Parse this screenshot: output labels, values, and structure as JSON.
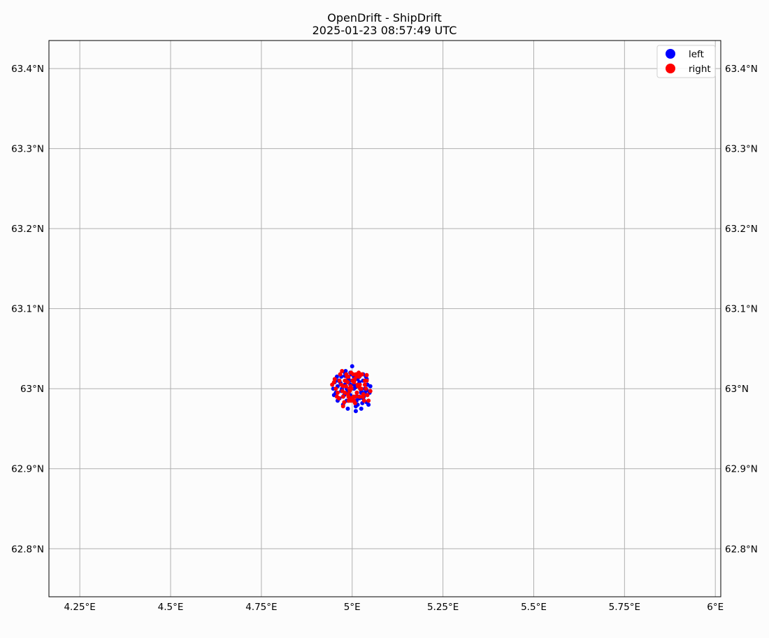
{
  "chart_data": {
    "type": "scatter",
    "title": "OpenDrift - ShipDrift",
    "subtitle": "2025-01-23 08:57:49 UTC",
    "xlabel": "",
    "ylabel": "",
    "xlim": [
      4.165,
      6.015
    ],
    "ylim": [
      62.74,
      63.435
    ],
    "x_ticks": [
      4.25,
      4.5,
      4.75,
      5.0,
      5.25,
      5.5,
      5.75,
      6.0
    ],
    "x_tick_labels": [
      "4.25°E",
      "4.5°E",
      "4.75°E",
      "5°E",
      "5.25°E",
      "5.5°E",
      "5.75°E",
      "6°E"
    ],
    "y_ticks": [
      62.8,
      62.9,
      63.0,
      63.1,
      63.2,
      63.3,
      63.4
    ],
    "y_tick_labels": [
      "62.8°N",
      "62.9°N",
      "63°N",
      "63.1°N",
      "63.2°N",
      "63.3°N",
      "63.4°N"
    ],
    "grid": true,
    "legend_position": "top-right",
    "series": [
      {
        "name": "left",
        "color": "#0000ff",
        "x": [
          4.948,
          4.955,
          4.962,
          4.97,
          4.975,
          4.98,
          4.985,
          4.99,
          4.995,
          5.0,
          5.005,
          5.01,
          5.015,
          5.02,
          5.025,
          5.03,
          5.035,
          5.04,
          5.045,
          5.05,
          4.96,
          4.968,
          4.978,
          4.988,
          4.998,
          5.008,
          5.018,
          5.028,
          5.038,
          5.048,
          4.952,
          4.965,
          4.972,
          4.982,
          4.992,
          5.002,
          5.012,
          5.022,
          5.032,
          5.042,
          4.958,
          4.975,
          4.985,
          4.995,
          5.005,
          5.015,
          5.025,
          5.035,
          4.97,
          4.98,
          4.99,
          5.0,
          5.01,
          5.02,
          5.03,
          5.04,
          4.985,
          4.995,
          5.005,
          5.015,
          5.025,
          5.0,
          5.01,
          4.99,
          4.98,
          5.02,
          5.03,
          5.04,
          4.96,
          4.95
        ],
        "y": [
          63.0,
          62.995,
          63.01,
          63.015,
          62.99,
          63.005,
          62.985,
          63.012,
          63.02,
          63.028,
          63.0,
          62.972,
          62.98,
          63.008,
          62.975,
          63.018,
          62.995,
          63.012,
          62.98,
          63.003,
          62.985,
          63.007,
          62.992,
          62.975,
          63.018,
          62.99,
          63.003,
          62.982,
          63.015,
          62.995,
          63.008,
          62.988,
          63.0,
          63.022,
          62.997,
          63.01,
          62.985,
          63.0,
          62.99,
          63.005,
          63.015,
          62.98,
          63.0,
          62.992,
          63.005,
          63.012,
          62.995,
          63.0,
          62.997,
          63.016,
          63.008,
          62.985,
          63.002,
          62.988,
          63.01,
          62.983,
          62.995,
          63.005,
          63.015,
          62.99,
          62.997,
          63.01,
          62.978,
          62.985,
          63.02,
          63.015,
          62.988,
          62.998,
          63.003,
          62.992
        ]
      },
      {
        "name": "right",
        "color": "#ff0000",
        "x": [
          4.945,
          4.952,
          4.96,
          4.967,
          4.975,
          4.982,
          4.99,
          4.997,
          5.005,
          5.012,
          5.02,
          5.027,
          5.035,
          5.042,
          5.05,
          4.955,
          4.963,
          4.972,
          4.98,
          4.988,
          4.995,
          5.003,
          5.01,
          5.018,
          5.025,
          5.033,
          5.04,
          4.958,
          4.97,
          4.978,
          4.986,
          4.993,
          5.001,
          5.008,
          5.016,
          5.023,
          5.031,
          5.038,
          4.965,
          4.975,
          4.984,
          4.992,
          5.0,
          5.007,
          5.015,
          5.022,
          5.03,
          4.973,
          4.983,
          4.99,
          4.998,
          5.006,
          5.013,
          5.021,
          5.028,
          4.98,
          4.988,
          4.996,
          5.004,
          5.011,
          5.019,
          4.99,
          4.998,
          5.005,
          5.013,
          4.975,
          5.035,
          5.045,
          4.95,
          5.04
        ],
        "y": [
          63.005,
          63.012,
          62.995,
          63.018,
          62.978,
          63.01,
          62.99,
          63.02,
          62.985,
          63.015,
          62.99,
          63.018,
          63.005,
          62.992,
          62.997,
          63.0,
          62.988,
          63.022,
          62.995,
          63.008,
          62.985,
          63.018,
          62.99,
          63.02,
          63.0,
          62.985,
          63.01,
          62.99,
          63.005,
          62.983,
          63.015,
          62.997,
          63.01,
          62.982,
          63.003,
          63.017,
          62.993,
          63.0,
          63.01,
          62.99,
          63.018,
          63.0,
          62.985,
          63.012,
          63.005,
          63.0,
          62.99,
          62.997,
          63.003,
          63.015,
          62.988,
          63.01,
          62.995,
          63.005,
          62.99,
          63.01,
          62.993,
          63.003,
          62.99,
          63.018,
          63.015,
          62.985,
          63.0,
          63.008,
          62.995,
          63.003,
          63.01,
          62.985,
          63.008,
          63.017
        ]
      }
    ]
  }
}
